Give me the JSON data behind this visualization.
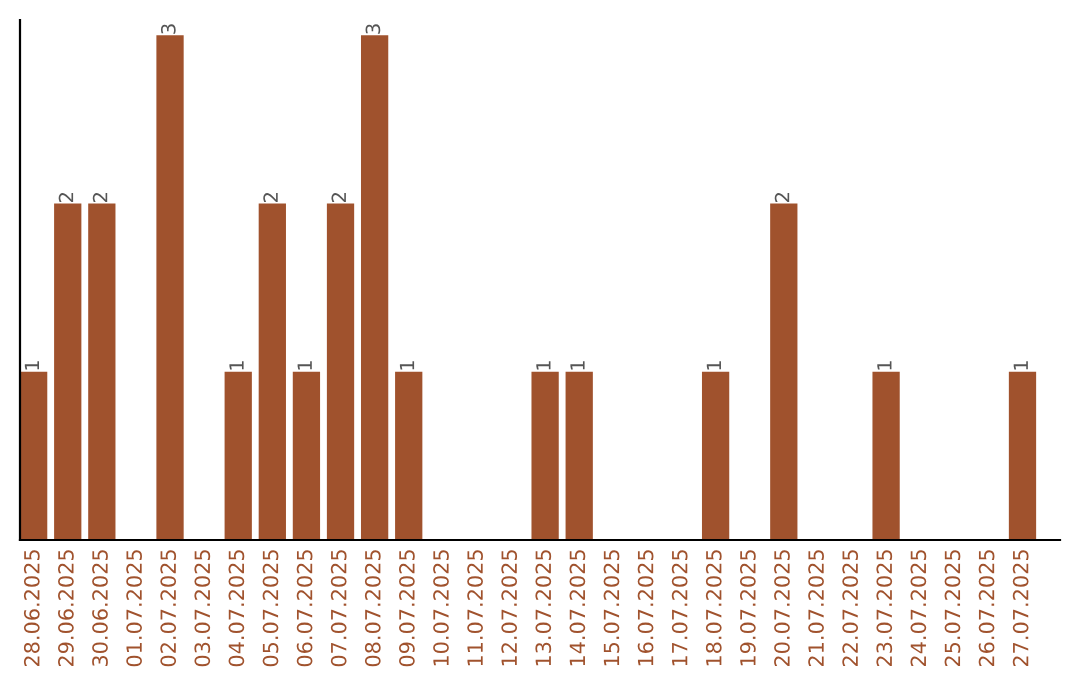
{
  "chart_data": {
    "type": "bar",
    "categories": [
      "28.06.2025",
      "29.06.2025",
      "30.06.2025",
      "01.07.2025",
      "02.07.2025",
      "03.07.2025",
      "04.07.2025",
      "05.07.2025",
      "06.07.2025",
      "07.07.2025",
      "08.07.2025",
      "09.07.2025",
      "10.07.2025",
      "11.07.2025",
      "12.07.2025",
      "13.07.2025",
      "14.07.2025",
      "15.07.2025",
      "16.07.2025",
      "17.07.2025",
      "18.07.2025",
      "19.07.2025",
      "20.07.2025",
      "21.07.2025",
      "22.07.2025",
      "23.07.2025",
      "24.07.2025",
      "25.07.2025",
      "26.07.2025",
      "27.07.2025"
    ],
    "values": [
      1,
      2,
      2,
      0,
      3,
      0,
      1,
      2,
      1,
      2,
      3,
      1,
      0,
      0,
      0,
      1,
      1,
      0,
      0,
      0,
      1,
      0,
      2,
      0,
      0,
      1,
      0,
      0,
      0,
      1
    ],
    "value_labels": [
      "1",
      "2",
      "2",
      null,
      "3",
      null,
      "1",
      "2",
      "1",
      "2",
      "3",
      "1",
      null,
      null,
      null,
      "1",
      "1",
      null,
      null,
      null,
      "1",
      null,
      "2",
      null,
      null,
      "1",
      null,
      null,
      null,
      "1"
    ],
    "color": "#a0522d",
    "tick_labels": "x",
    "grid": false
  }
}
